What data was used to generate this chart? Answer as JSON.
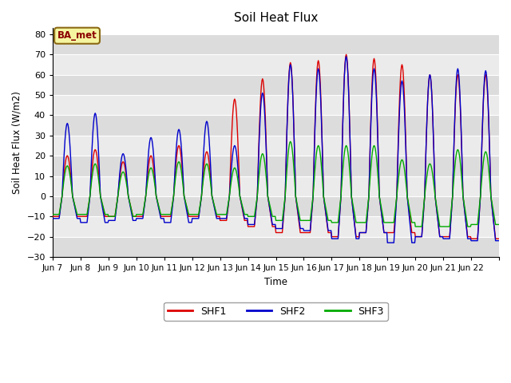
{
  "title": "Soil Heat Flux",
  "ylabel": "Soil Heat Flux (W/m2)",
  "xlabel": "Time",
  "ylim": [
    -30,
    83
  ],
  "background_color": "#ffffff",
  "plot_bg_color": "#ffffff",
  "band_color_dark": "#dcdcdc",
  "band_color_light": "#ebebeb",
  "label_box_text": "BA_met",
  "label_box_bg": "#f5f5a0",
  "label_box_edge": "#8B6914",
  "legend_entries": [
    "SHF1",
    "SHF2",
    "SHF3"
  ],
  "line_colors": [
    "#dd0000",
    "#0000cc",
    "#00aa00"
  ],
  "yticks": [
    -30,
    -20,
    -10,
    0,
    10,
    20,
    30,
    40,
    50,
    60,
    70,
    80
  ],
  "xtick_labels": [
    "Jun 7",
    "Jun 8",
    "Jun 9",
    "Jun 10",
    "Jun 11",
    "Jun 12",
    "Jun 13",
    "Jun 14",
    "Jun 15",
    "Jun 16",
    "Jun 17",
    "Jun 18",
    "Jun 19",
    "Jun 20",
    "Jun 21",
    "Jun 22"
  ],
  "n_days": 16,
  "pts_per_day": 48,
  "lw": 1.0,
  "peaks_shf1": [
    20,
    23,
    17,
    20,
    25,
    22,
    48,
    58,
    66,
    67,
    70,
    68,
    65,
    60,
    60,
    60
  ],
  "peaks_shf2": [
    36,
    41,
    21,
    29,
    33,
    37,
    25,
    51,
    65,
    63,
    69,
    63,
    57,
    60,
    63,
    62
  ],
  "peaks_shf3": [
    15,
    16,
    12,
    14,
    17,
    16,
    14,
    21,
    27,
    25,
    25,
    25,
    18,
    16,
    23,
    22
  ],
  "nights_shf1": [
    -10,
    -10,
    -10,
    -10,
    -10,
    -10,
    -12,
    -15,
    -18,
    -18,
    -20,
    -18,
    -18,
    -20,
    -20,
    -21
  ],
  "nights_shf2": [
    -11,
    -13,
    -12,
    -11,
    -13,
    -11,
    -11,
    -14,
    -16,
    -17,
    -21,
    -18,
    -23,
    -20,
    -21,
    -22
  ],
  "nights_shf3": [
    -9,
    -9,
    -10,
    -9,
    -9,
    -9,
    -9,
    -10,
    -12,
    -12,
    -13,
    -13,
    -13,
    -15,
    -15,
    -14
  ]
}
